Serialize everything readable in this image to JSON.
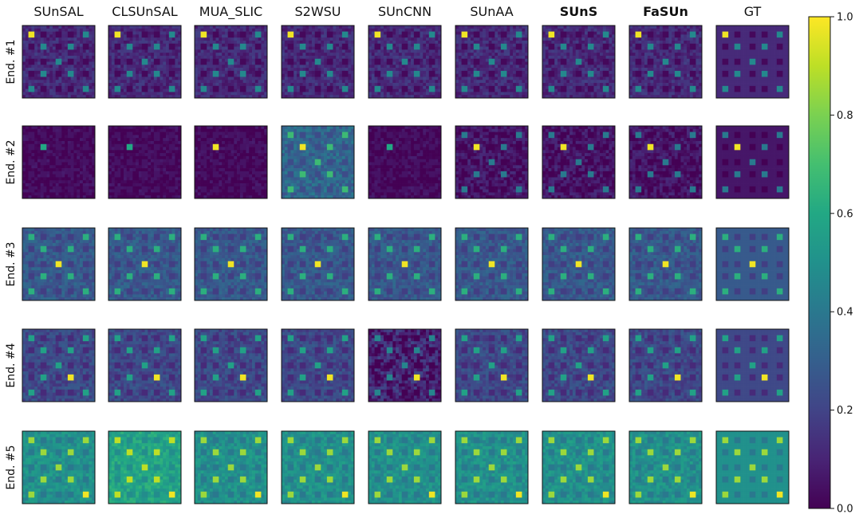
{
  "chart_data": {
    "type": "heatmap",
    "columns": [
      {
        "label": "SUnSAL",
        "bold": false
      },
      {
        "label": "CLSUnSAL",
        "bold": false
      },
      {
        "label": "MUA_SLIC",
        "bold": false
      },
      {
        "label": "S2WSU",
        "bold": false
      },
      {
        "label": "SUnCNN",
        "bold": false
      },
      {
        "label": "SUnAA",
        "bold": false
      },
      {
        "label": "SUnS",
        "bold": true
      },
      {
        "label": "FaSUn",
        "bold": true
      },
      {
        "label": "GT",
        "bold": false
      }
    ],
    "rows": [
      "End. #1",
      "End. #2",
      "End. #3",
      "End. #4",
      "End. #5"
    ],
    "colorbar": {
      "colormap": "viridis",
      "range": [
        0.0,
        1.0
      ],
      "ticks": [
        "0.0",
        "0.2",
        "0.4",
        "0.6",
        "0.8",
        "1.0"
      ]
    },
    "grid_squares": "5x5 squares per abundance map",
    "background_abundance_mean": [
      0.12,
      0.06,
      0.28,
      0.22,
      0.5
    ]
  }
}
